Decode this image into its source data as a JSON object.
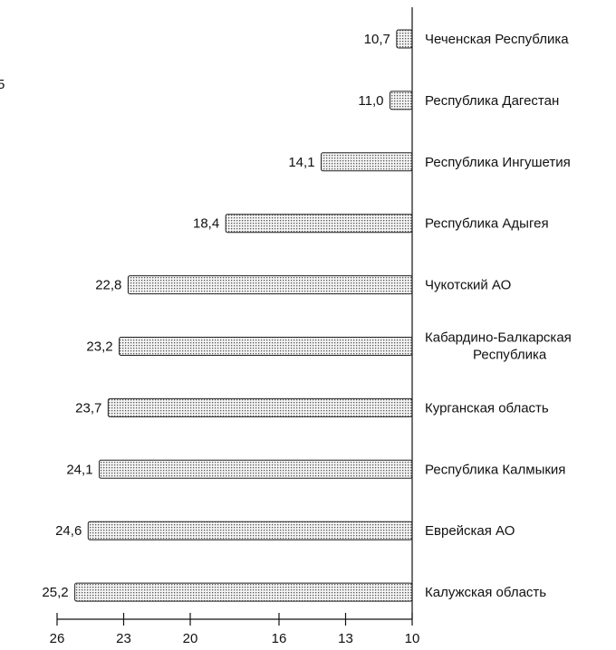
{
  "chart_data": {
    "type": "bar",
    "orientation": "horizontal",
    "title": "",
    "xlabel": "",
    "ylabel": "",
    "categories": [
      "Чеченская Республика",
      "Республика Дагестан",
      "Республика Ингушетия",
      "Республика Адыгея",
      "Чукотский АО",
      "Кабардино-Балкарская Республика",
      "Курганская область",
      "Республика Калмыкия",
      "Еврейская АО",
      "Калужская область"
    ],
    "values": [
      10.7,
      11.0,
      14.1,
      18.4,
      22.8,
      23.2,
      23.7,
      24.1,
      24.6,
      25.2
    ],
    "value_labels": [
      "10,7",
      "11,0",
      "14,1",
      "18,4",
      "22,8",
      "23,2",
      "23,7",
      "24,1",
      "24,6",
      "25,2"
    ],
    "xlim": [
      10,
      26
    ],
    "x_axis_reversed": true,
    "baseline": 10,
    "ticks": [
      26,
      23,
      20,
      16,
      13,
      10
    ],
    "tick_labels": [
      "26",
      "23",
      "20",
      "16",
      "13",
      "10"
    ],
    "grid": false,
    "legend": "none",
    "bar_fill": "#dcdcdc",
    "bar_stroke": "#222222",
    "clipped_fragment": "5"
  }
}
